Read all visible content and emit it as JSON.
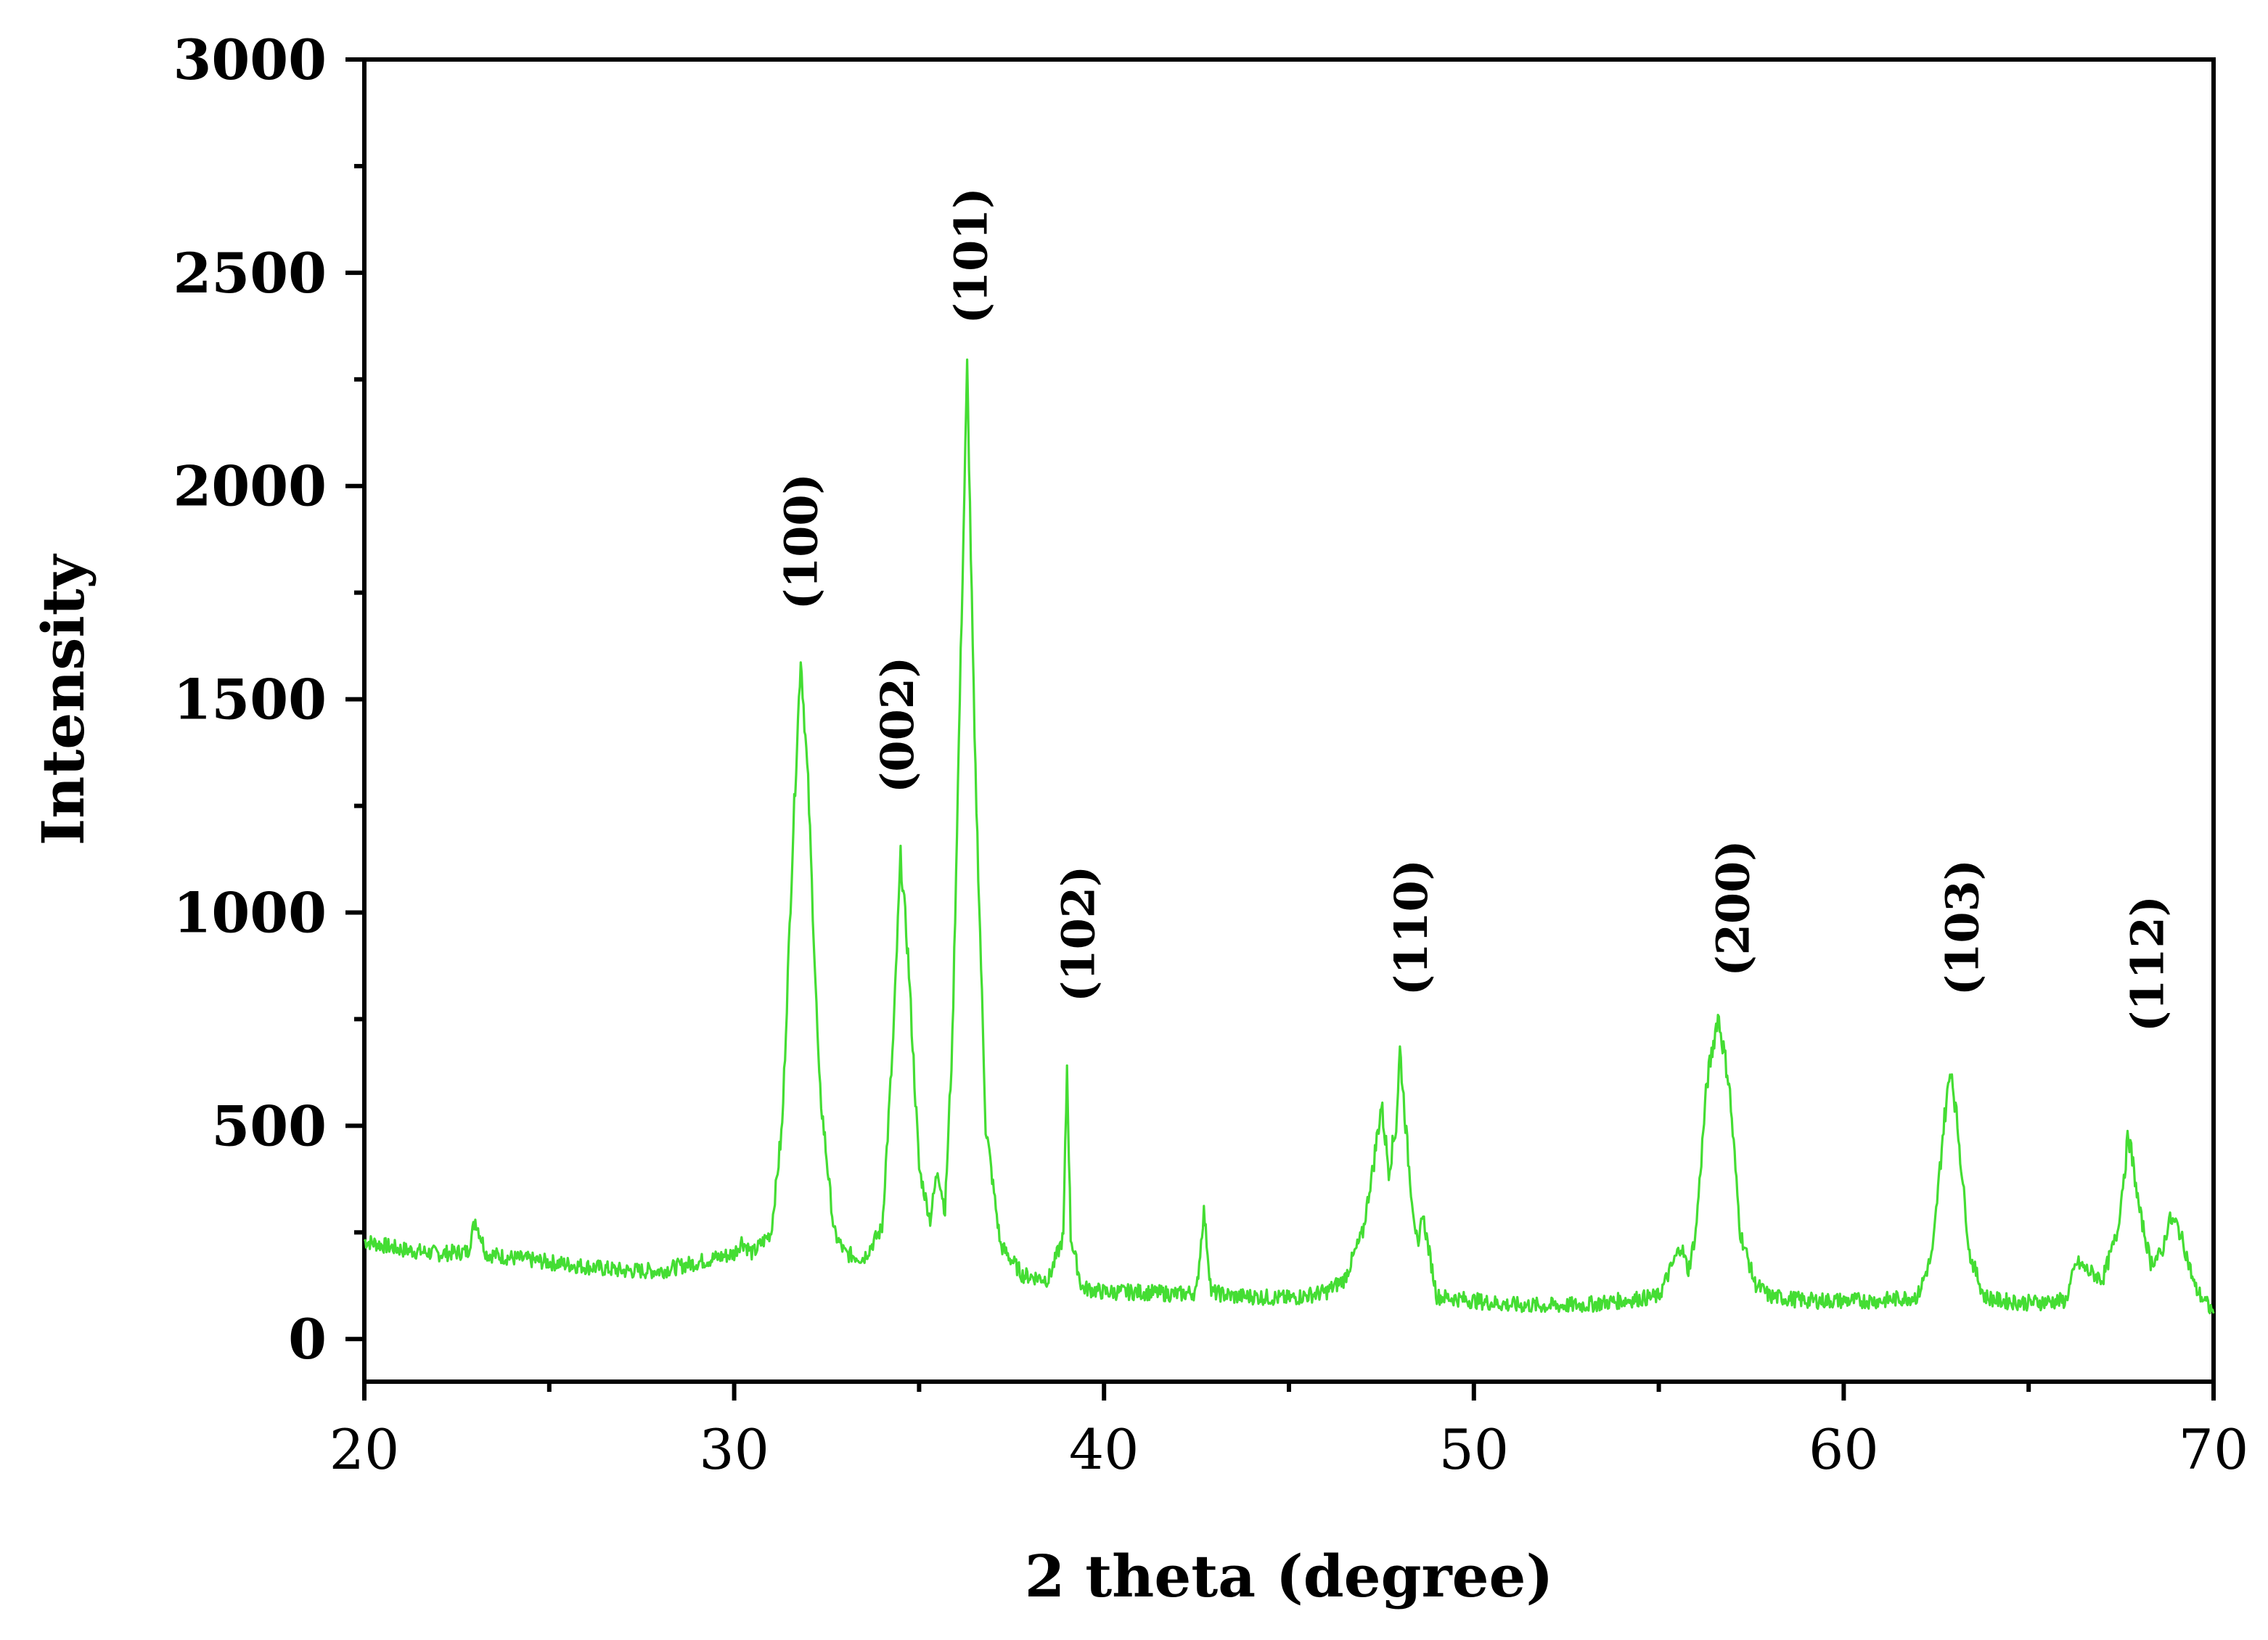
{
  "chart_data": {
    "type": "line",
    "title": "",
    "xlabel": "2 theta (degree)",
    "ylabel": "Intensity",
    "xlim": [
      20,
      70
    ],
    "ylim": [
      -100,
      3000
    ],
    "x_ticks": [
      20,
      30,
      40,
      50,
      60,
      70
    ],
    "x_tick_labels": [
      "20",
      "30",
      "40",
      "50",
      "60",
      "70"
    ],
    "x_minor_ticks": [
      25,
      35,
      45,
      55,
      65
    ],
    "y_ticks": [
      0,
      500,
      1000,
      1500,
      2000,
      2500,
      3000
    ],
    "y_tick_labels": [
      "0",
      "500",
      "1000",
      "1500",
      "2000",
      "2500",
      "3000"
    ],
    "y_minor_ticks": [
      250,
      750,
      1250,
      1750,
      2250,
      2750
    ],
    "grid": false,
    "series_color": "#44dd33",
    "series": [
      {
        "x": [
          20,
          21,
          22,
          22.8,
          23,
          23.3,
          24,
          25,
          26,
          27,
          28,
          29,
          29.5,
          30,
          30.2,
          30.5,
          31,
          31.3,
          31.6,
          31.8,
          32,
          32.3,
          32.7,
          33,
          33.5,
          34,
          34.3,
          34.5,
          34.7,
          35,
          35.3,
          35.5,
          35.7,
          35.9,
          36.1,
          36.3,
          36.5,
          36.8,
          37.2,
          37.8,
          38.5,
          38.9,
          39,
          39.1,
          39.4,
          40,
          41,
          42,
          42.5,
          42.7,
          42.9,
          43.5,
          44,
          45,
          46,
          46.5,
          47,
          47.3,
          47.5,
          47.7,
          47.9,
          48,
          48.2,
          48.3,
          48.5,
          48.6,
          49,
          50,
          51,
          52,
          53,
          54,
          55,
          55.6,
          55.8,
          56,
          56.3,
          56.6,
          56.9,
          57.2,
          57.6,
          58,
          59,
          60,
          61,
          62,
          62.4,
          62.7,
          62.9,
          63.1,
          63.4,
          63.8,
          64.2,
          65,
          66,
          66.3,
          66.6,
          67,
          67.4,
          67.7,
          68,
          68.3,
          68.6,
          68.8,
          69,
          69.2,
          69.5,
          70
        ],
        "y": [
          230,
          210,
          200,
          205,
          280,
          200,
          190,
          180,
          170,
          160,
          160,
          180,
          190,
          200,
          230,
          200,
          250,
          500,
          1200,
          1600,
          1300,
          600,
          250,
          200,
          190,
          260,
          700,
          1130,
          900,
          400,
          280,
          400,
          300,
          700,
          1500,
          2280,
          1400,
          500,
          220,
          150,
          140,
          240,
          640,
          240,
          120,
          110,
          110,
          105,
          110,
          300,
          110,
          100,
          100,
          95,
          110,
          140,
          250,
          420,
          550,
          400,
          500,
          680,
          450,
          350,
          200,
          300,
          100,
          90,
          80,
          78,
          80,
          90,
          100,
          220,
          160,
          250,
          600,
          760,
          600,
          250,
          130,
          100,
          90,
          90,
          90,
          100,
          200,
          500,
          640,
          480,
          200,
          100,
          90,
          85,
          90,
          180,
          160,
          140,
          250,
          480,
          300,
          180,
          200,
          280,
          270,
          220,
          120,
          60
        ]
      }
    ],
    "annotations": [
      {
        "text": "(100)",
        "x": 31.8,
        "y": 1710
      },
      {
        "text": "(002)",
        "x": 34.4,
        "y": 1280
      },
      {
        "text": "(101)",
        "x": 36.4,
        "y": 2380
      },
      {
        "text": "(102)",
        "x": 39.3,
        "y": 790
      },
      {
        "text": "(110)",
        "x": 48.3,
        "y": 805
      },
      {
        "text": "(200)",
        "x": 57.0,
        "y": 850
      },
      {
        "text": "(103)",
        "x": 63.2,
        "y": 805
      },
      {
        "text": "(112)",
        "x": 68.2,
        "y": 720
      }
    ]
  }
}
